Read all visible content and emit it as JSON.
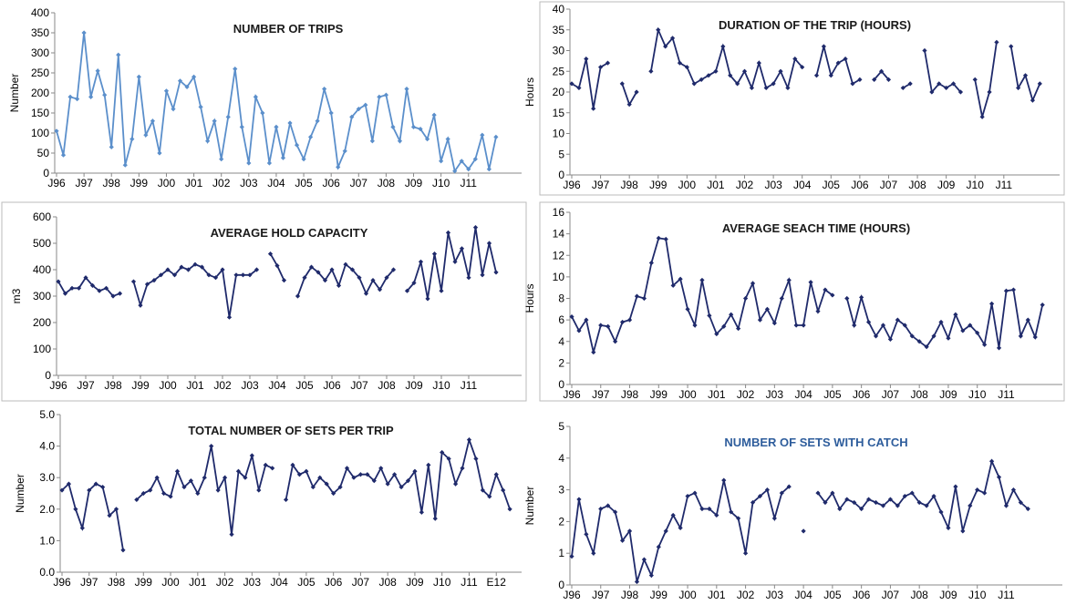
{
  "chart_data": [
    {
      "type": "line",
      "title": "NUMBER OF TRIPS",
      "y_label": "Number",
      "color": "#5b8fcb",
      "marker": "diamond",
      "ylim": [
        0,
        400
      ],
      "yticks": [
        0,
        50,
        100,
        150,
        200,
        250,
        300,
        350,
        400
      ],
      "categories": [
        "J96",
        null,
        null,
        null,
        "J97",
        null,
        null,
        null,
        "J98",
        null,
        null,
        null,
        "J99",
        null,
        null,
        null,
        "J00",
        null,
        null,
        null,
        "J01",
        null,
        null,
        null,
        "J02",
        null,
        null,
        null,
        "J03",
        null,
        null,
        null,
        "J04",
        null,
        null,
        null,
        "J05",
        null,
        null,
        null,
        "J06",
        null,
        null,
        null,
        "J07",
        null,
        null,
        null,
        "J08",
        null,
        null,
        null,
        "J09",
        null,
        null,
        null,
        "J10",
        null,
        null,
        null,
        "J11",
        null,
        null,
        null,
        null,
        null,
        null,
        null
      ],
      "values": [
        105,
        45,
        190,
        185,
        350,
        190,
        255,
        195,
        65,
        295,
        20,
        85,
        240,
        95,
        130,
        50,
        205,
        160,
        230,
        215,
        240,
        165,
        80,
        130,
        35,
        140,
        260,
        115,
        25,
        190,
        150,
        25,
        115,
        38,
        125,
        70,
        35,
        90,
        130,
        210,
        150,
        15,
        55,
        140,
        160,
        170,
        80,
        190,
        195,
        115,
        80,
        210,
        115,
        110,
        85,
        145,
        30,
        85,
        5,
        30,
        10,
        35,
        95,
        10,
        90,
        null,
        null,
        null
      ]
    },
    {
      "type": "line",
      "title": "DURATION OF THE TRIP (HOURS)",
      "y_label": "Hours",
      "color": "#1f2a6b",
      "marker": "diamond",
      "ylim": [
        0,
        40
      ],
      "yticks": [
        0,
        5,
        10,
        15,
        20,
        25,
        30,
        35,
        40
      ],
      "categories": [
        "J96",
        null,
        null,
        null,
        "J97",
        null,
        null,
        null,
        "J98",
        null,
        null,
        null,
        "J99",
        null,
        null,
        null,
        "J00",
        null,
        null,
        null,
        "J01",
        null,
        null,
        null,
        "J02",
        null,
        null,
        null,
        "J03",
        null,
        null,
        null,
        "J04",
        null,
        null,
        null,
        "J05",
        null,
        null,
        null,
        "J06",
        null,
        null,
        null,
        "J07",
        null,
        null,
        null,
        "J08",
        null,
        null,
        null,
        "J09",
        null,
        null,
        null,
        "J10",
        null,
        null,
        null,
        "J11",
        null,
        null,
        null,
        null,
        null,
        null,
        null
      ],
      "values": [
        22,
        21,
        28,
        16,
        26,
        27,
        null,
        22,
        17,
        20,
        null,
        25,
        35,
        31,
        33,
        27,
        26,
        22,
        23,
        24,
        25,
        31,
        24,
        22,
        25,
        21,
        27,
        21,
        22,
        25,
        21,
        28,
        26,
        null,
        24,
        31,
        24,
        27,
        28,
        22,
        23,
        null,
        23,
        25,
        23,
        null,
        21,
        22,
        null,
        30,
        20,
        22,
        21,
        22,
        20,
        null,
        23,
        14,
        20,
        32,
        null,
        31,
        21,
        24,
        18,
        22,
        null,
        null
      ]
    },
    {
      "type": "line",
      "title": "AVERAGE HOLD CAPACITY",
      "y_label": "m3",
      "color": "#1f2a6b",
      "marker": "diamond",
      "ylim": [
        0,
        600
      ],
      "yticks": [
        0,
        100,
        200,
        300,
        400,
        500,
        600
      ],
      "categories": [
        "J96",
        null,
        null,
        null,
        "J97",
        null,
        null,
        null,
        "J98",
        null,
        null,
        null,
        "J99",
        null,
        null,
        null,
        "J00",
        null,
        null,
        null,
        "J01",
        null,
        null,
        null,
        "J02",
        null,
        null,
        null,
        "J03",
        null,
        null,
        null,
        "J04",
        null,
        null,
        null,
        "J05",
        null,
        null,
        null,
        "J06",
        null,
        null,
        null,
        "J07",
        null,
        null,
        null,
        "J08",
        null,
        null,
        null,
        "J09",
        null,
        null,
        null,
        "J10",
        null,
        null,
        null,
        "J11",
        null,
        null,
        null,
        null,
        null,
        null,
        null
      ],
      "values": [
        355,
        310,
        330,
        330,
        370,
        340,
        320,
        330,
        300,
        310,
        null,
        355,
        265,
        345,
        360,
        380,
        400,
        380,
        410,
        400,
        420,
        410,
        380,
        370,
        400,
        220,
        380,
        380,
        380,
        400,
        null,
        460,
        415,
        360,
        null,
        300,
        370,
        410,
        390,
        360,
        400,
        340,
        420,
        400,
        370,
        310,
        360,
        325,
        370,
        400,
        null,
        320,
        350,
        430,
        290,
        460,
        320,
        540,
        430,
        480,
        370,
        560,
        380,
        500,
        390,
        null,
        null,
        null
      ]
    },
    {
      "type": "line",
      "title": "AVERAGE SEACH TIME (HOURS)",
      "y_label": "Hours",
      "color": "#1f2a6b",
      "marker": "diamond",
      "ylim": [
        0,
        16
      ],
      "yticks": [
        0,
        2,
        4,
        6,
        8,
        10,
        12,
        14,
        16
      ],
      "categories": [
        "J96",
        null,
        null,
        null,
        "J97",
        null,
        null,
        null,
        "J98",
        null,
        null,
        null,
        "J99",
        null,
        null,
        null,
        "J00",
        null,
        null,
        null,
        "J01",
        null,
        null,
        null,
        "J02",
        null,
        null,
        null,
        "J03",
        null,
        null,
        null,
        "J04",
        null,
        null,
        null,
        "J05",
        null,
        null,
        null,
        "J06",
        null,
        null,
        null,
        "J07",
        null,
        null,
        null,
        "J08",
        null,
        null,
        null,
        "J09",
        null,
        null,
        null,
        "J10",
        null,
        null,
        null,
        "J11",
        null,
        null,
        null,
        null,
        null,
        null,
        null
      ],
      "values": [
        6.3,
        5,
        6,
        3,
        5.5,
        5.4,
        4,
        5.8,
        6,
        8.2,
        8,
        11.3,
        13.6,
        13.5,
        9.2,
        9.8,
        7,
        5.5,
        9.7,
        6.4,
        4.7,
        5.4,
        6.5,
        5.2,
        8,
        9.4,
        6,
        7,
        5.7,
        8,
        9.7,
        5.5,
        5.5,
        9.5,
        6.8,
        8.8,
        8.3,
        null,
        8,
        5.5,
        8.1,
        5.8,
        4.5,
        5.5,
        4.2,
        6,
        5.5,
        4.5,
        4,
        3.5,
        4.5,
        5.8,
        4.3,
        6.5,
        5,
        5.5,
        4.8,
        3.7,
        7.5,
        3.4,
        8.7,
        8.8,
        4.5,
        6,
        4.4,
        7.4,
        null,
        null
      ]
    },
    {
      "type": "line",
      "title": "TOTAL NUMBER OF SETS PER TRIP",
      "y_label": "Number",
      "color": "#1f2a6b",
      "marker": "diamond",
      "ylim": [
        0,
        5
      ],
      "yticks": [
        {
          "value": 0,
          "label": "0.0"
        },
        {
          "value": 1,
          "label": "1.0"
        },
        {
          "value": 2,
          "label": "2.0"
        },
        {
          "value": 3,
          "label": "3.0"
        },
        {
          "value": 4,
          "label": "4.0"
        },
        {
          "value": 5,
          "label": "5.0"
        }
      ],
      "categories": [
        "J96",
        null,
        null,
        null,
        "J97",
        null,
        null,
        null,
        "J98",
        null,
        null,
        null,
        "J99",
        null,
        null,
        null,
        "J00",
        null,
        null,
        null,
        "J01",
        null,
        null,
        null,
        "J02",
        null,
        null,
        null,
        "J03",
        null,
        null,
        null,
        "J04",
        null,
        null,
        null,
        "J05",
        null,
        null,
        null,
        "J06",
        null,
        null,
        null,
        "J07",
        null,
        null,
        null,
        "J08",
        null,
        null,
        null,
        "J09",
        null,
        null,
        null,
        "J10",
        null,
        null,
        null,
        "J11",
        null,
        null,
        null,
        "E12",
        null,
        null,
        null
      ],
      "values": [
        2.6,
        2.8,
        2.0,
        1.4,
        2.6,
        2.8,
        2.7,
        1.8,
        2.0,
        0.7,
        null,
        2.3,
        2.5,
        2.6,
        3.0,
        2.5,
        2.4,
        3.2,
        2.7,
        2.9,
        2.5,
        3.0,
        4.0,
        2.6,
        3.0,
        1.2,
        3.2,
        3.0,
        3.7,
        2.6,
        3.4,
        3.3,
        null,
        2.3,
        3.4,
        3.1,
        3.2,
        2.7,
        3.0,
        2.8,
        2.5,
        2.7,
        3.3,
        3.0,
        3.1,
        3.1,
        2.9,
        3.3,
        2.8,
        3.1,
        2.7,
        2.9,
        3.2,
        1.9,
        3.4,
        1.7,
        3.8,
        3.6,
        2.8,
        3.3,
        4.2,
        3.6,
        2.6,
        2.4,
        3.1,
        2.6,
        2.0,
        null
      ]
    },
    {
      "type": "line",
      "title": "NUMBER OF SETS WITH CATCH",
      "y_label": "Number",
      "color": "#1f2a6b",
      "marker": "diamond",
      "title_color": "#2e5d9c",
      "ylim": [
        0,
        5
      ],
      "yticks": [
        0,
        1,
        2,
        3,
        4,
        5
      ],
      "categories": [
        "J96",
        null,
        null,
        null,
        "J97",
        null,
        null,
        null,
        "J98",
        null,
        null,
        null,
        "J99",
        null,
        null,
        null,
        "J00",
        null,
        null,
        null,
        "J01",
        null,
        null,
        null,
        "J02",
        null,
        null,
        null,
        "J03",
        null,
        null,
        null,
        "J04",
        null,
        null,
        null,
        "J05",
        null,
        null,
        null,
        "J06",
        null,
        null,
        null,
        "J07",
        null,
        null,
        null,
        "J08",
        null,
        null,
        null,
        "J09",
        null,
        null,
        null,
        "J10",
        null,
        null,
        null,
        "J11",
        null,
        null,
        null,
        null,
        null,
        null,
        null
      ],
      "values": [
        0.9,
        2.7,
        1.6,
        1.0,
        2.4,
        2.5,
        2.3,
        1.4,
        1.7,
        0.1,
        0.8,
        0.3,
        1.2,
        1.7,
        2.2,
        1.8,
        2.8,
        2.9,
        2.4,
        2.4,
        2.2,
        3.3,
        2.3,
        2.1,
        1.0,
        2.6,
        2.8,
        3.0,
        2.1,
        2.9,
        3.1,
        null,
        1.7,
        null,
        2.9,
        2.6,
        2.9,
        2.4,
        2.7,
        2.6,
        2.4,
        2.7,
        2.6,
        2.5,
        2.7,
        2.5,
        2.8,
        2.9,
        2.6,
        2.5,
        2.8,
        2.3,
        1.8,
        3.1,
        1.7,
        2.5,
        3.0,
        2.9,
        3.9,
        3.4,
        2.5,
        3.0,
        2.6,
        2.4,
        null,
        null,
        null,
        null
      ]
    }
  ]
}
